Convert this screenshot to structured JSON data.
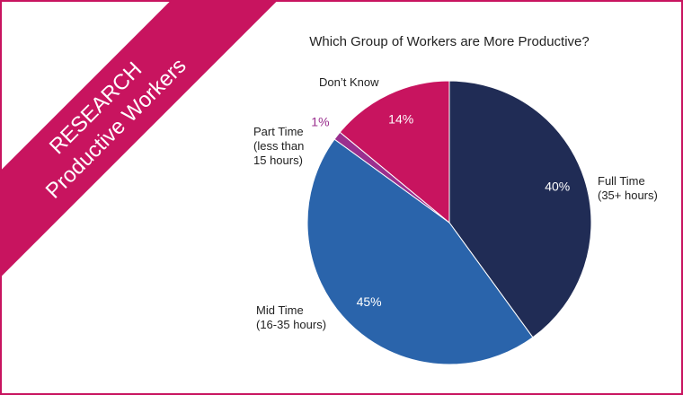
{
  "banner": {
    "line1": "RESEARCH",
    "line2": "Productive Workers"
  },
  "chart_data": {
    "type": "pie",
    "title": "Which Group of Workers are More Productive?",
    "categories": [
      "Full Time\n(35+ hours)",
      "Mid Time\n(16-35 hours)",
      "Part Time\n(less than\n15 hours)",
      "Don’t Know"
    ],
    "values": [
      40,
      45,
      1,
      14
    ],
    "value_labels": [
      "40%",
      "45%",
      "1%",
      "14%"
    ],
    "colors": [
      "#202c55",
      "#2a64ab",
      "#9a2f8e",
      "#c8145f"
    ]
  }
}
